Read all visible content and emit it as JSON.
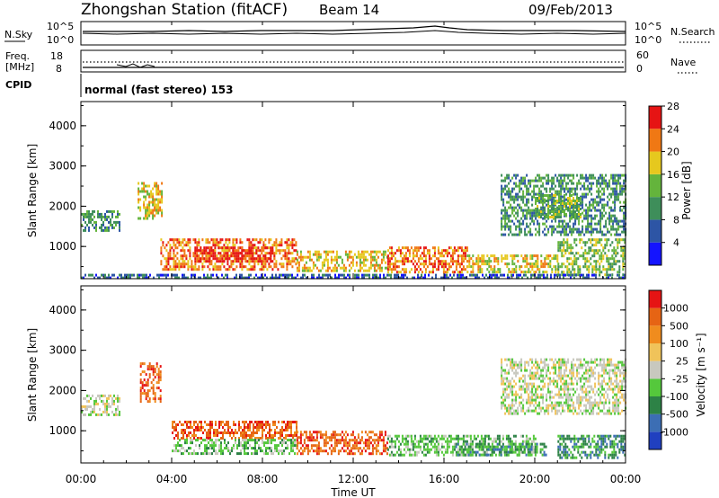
{
  "header": {
    "station": "Zhongshan Station (fitACF)",
    "beam": "Beam 14",
    "date": "09/Feb/2013"
  },
  "panels": {
    "nsky": {
      "label": "N.Sky",
      "ticks": [
        "10^5",
        "10^0"
      ],
      "right_label": "N.Search",
      "right_ticks": [
        "10^5",
        "10^0"
      ]
    },
    "freq": {
      "label_line1": "Freq.",
      "label_line2": "[MHz]",
      "ticks": [
        "18",
        "8"
      ],
      "right_label": "Nave",
      "right_ticks": [
        "60",
        "0"
      ]
    },
    "cpid": {
      "label": "CPID",
      "mode": "normal (fast stereo) 153"
    }
  },
  "x_ticks": [
    "00:00",
    "04:00",
    "08:00",
    "12:00",
    "16:00",
    "20:00",
    "00:00"
  ],
  "x_label": "Time UT",
  "chart_data": [
    {
      "type": "heatmap",
      "quantity": "Power",
      "ylabel": "Slant Range [km]",
      "y_ticks": [
        "1000",
        "2000",
        "3000",
        "4000"
      ],
      "ylim": [
        200,
        4600
      ],
      "xlim": [
        0,
        24
      ],
      "colorbar_label": "Power [dB]",
      "colorbar_ticks": [
        "4",
        "8",
        "12",
        "16",
        "20",
        "24",
        "28"
      ],
      "colorbar_colors": [
        "#1414ff",
        "#2d55a5",
        "#3e8e5a",
        "#64b43c",
        "#e6c81e",
        "#f07814",
        "#e61414"
      ],
      "regions": [
        {
          "t0": 0.0,
          "t1": 1.7,
          "r0": 1400,
          "r1": 1900,
          "level": 2
        },
        {
          "t0": 2.5,
          "t1": 3.6,
          "r0": 1700,
          "r1": 2600,
          "level": 4
        },
        {
          "t0": 3.5,
          "t1": 9.5,
          "r0": 400,
          "r1": 1200,
          "level": 5
        },
        {
          "t0": 5.0,
          "t1": 8.5,
          "r0": 600,
          "r1": 1000,
          "level": 6
        },
        {
          "t0": 9.5,
          "t1": 13.5,
          "r0": 400,
          "r1": 900,
          "level": 4
        },
        {
          "t0": 13.5,
          "t1": 17.0,
          "r0": 350,
          "r1": 1000,
          "level": 5
        },
        {
          "t0": 17.0,
          "t1": 21.0,
          "r0": 350,
          "r1": 800,
          "level": 4
        },
        {
          "t0": 18.5,
          "t1": 24.0,
          "r0": 1300,
          "r1": 2800,
          "level": 2
        },
        {
          "t0": 20.0,
          "t1": 22.0,
          "r0": 1700,
          "r1": 2300,
          "level": 3
        },
        {
          "t0": 21.0,
          "t1": 24.0,
          "r0": 300,
          "r1": 1200,
          "level": 3
        },
        {
          "t0": 0.0,
          "t1": 24.0,
          "r0": 200,
          "r1": 320,
          "level": 1
        }
      ]
    },
    {
      "type": "heatmap",
      "quantity": "Velocity",
      "ylabel": "Slant Range [km]",
      "y_ticks": [
        "1000",
        "2000",
        "3000",
        "4000"
      ],
      "ylim": [
        200,
        4600
      ],
      "xlim": [
        0,
        24
      ],
      "colorbar_label": "Velocity [m s⁻¹]",
      "colorbar_ticks": [
        "1000",
        "500",
        "100",
        "25",
        "-25",
        "-100",
        "-500",
        "-1000"
      ],
      "colorbar_colors": [
        "#2040c0",
        "#3c6eb4",
        "#2d8246",
        "#55c83c",
        "#c8c8be",
        "#f0c35a",
        "#f08c1e",
        "#e66414",
        "#e61414"
      ],
      "regions": [
        {
          "t0": 0.0,
          "t1": 1.7,
          "r0": 1400,
          "r1": 1900,
          "level": 4
        },
        {
          "t0": 2.6,
          "t1": 3.5,
          "r0": 1700,
          "r1": 2700,
          "level": 7
        },
        {
          "t0": 4.0,
          "t1": 9.5,
          "r0": 800,
          "r1": 1250,
          "level": 7
        },
        {
          "t0": 4.0,
          "t1": 9.5,
          "r0": 400,
          "r1": 800,
          "level": 3
        },
        {
          "t0": 9.5,
          "t1": 13.5,
          "r0": 450,
          "r1": 1000,
          "level": 7
        },
        {
          "t0": 13.5,
          "t1": 20.0,
          "r0": 400,
          "r1": 900,
          "level": 3
        },
        {
          "t0": 16.5,
          "t1": 20.5,
          "r0": 400,
          "r1": 700,
          "level": 2
        },
        {
          "t0": 18.5,
          "t1": 24.0,
          "r0": 1400,
          "r1": 2800,
          "level": 4
        },
        {
          "t0": 21.0,
          "t1": 24.0,
          "r0": 300,
          "r1": 900,
          "level": 2
        }
      ]
    }
  ]
}
